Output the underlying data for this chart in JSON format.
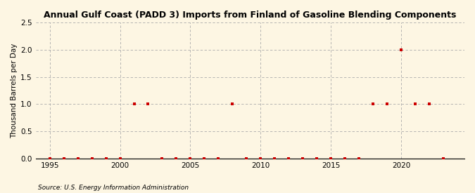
{
  "title": "Annual Gulf Coast (PADD 3) Imports from Finland of Gasoline Blending Components",
  "ylabel": "Thousand Barrels per Day",
  "source": "Source: U.S. Energy Information Administration",
  "background_color": "#fdf6e3",
  "plot_bg_color": "#fdf6e3",
  "marker_color": "#cc0000",
  "grid_color": "#aaaaaa",
  "x_data": [
    1995,
    1996,
    1997,
    1998,
    1999,
    2000,
    2001,
    2002,
    2003,
    2004,
    2005,
    2006,
    2007,
    2008,
    2009,
    2010,
    2011,
    2012,
    2013,
    2014,
    2015,
    2016,
    2017,
    2018,
    2019,
    2020,
    2021,
    2022,
    2023
  ],
  "y_data": [
    0.0,
    0.0,
    0.0,
    0.0,
    0.0,
    0.0,
    1.0,
    1.0,
    0.0,
    0.0,
    0.0,
    0.0,
    0.0,
    1.0,
    0.0,
    0.0,
    0.0,
    0.0,
    0.0,
    0.0,
    0.0,
    0.0,
    0.0,
    1.0,
    1.0,
    2.0,
    1.0,
    1.0,
    0.0
  ],
  "xlim": [
    1994.0,
    2024.5
  ],
  "ylim": [
    0.0,
    2.5
  ],
  "yticks": [
    0.0,
    0.5,
    1.0,
    1.5,
    2.0,
    2.5
  ],
  "xticks": [
    1995,
    2000,
    2005,
    2010,
    2015,
    2020
  ],
  "vgrid_x": [
    1995,
    2000,
    2005,
    2010,
    2015,
    2020
  ],
  "title_fontsize": 9.0,
  "label_fontsize": 7.5,
  "tick_fontsize": 7.5,
  "source_fontsize": 6.5,
  "marker_size": 10
}
